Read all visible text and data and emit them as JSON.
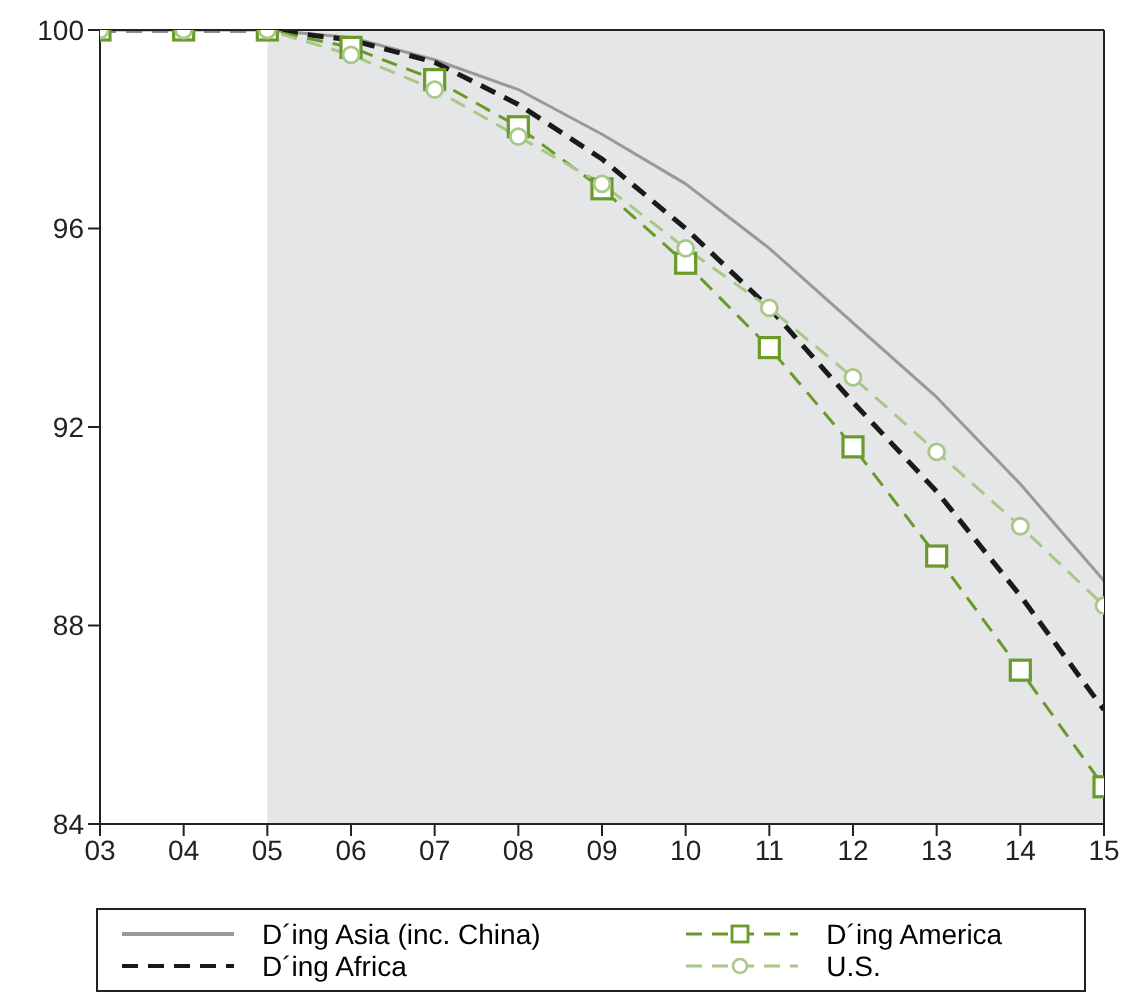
{
  "chart_data": {
    "type": "line",
    "categories": [
      "03",
      "04",
      "05",
      "06",
      "07",
      "08",
      "09",
      "10",
      "11",
      "12",
      "13",
      "14",
      "15"
    ],
    "ylim": [
      84,
      100
    ],
    "yticks": [
      84,
      88,
      92,
      96,
      100
    ],
    "grid": false,
    "legend": "bottom",
    "bands": [
      {
        "axis": "x",
        "from": "05",
        "to": "15",
        "color": "#e5e6e8"
      }
    ],
    "series": [
      {
        "name": "D´ing Asia (inc. China)",
        "color": "#999999",
        "line_style": "solid",
        "marker": "none",
        "values": [
          100,
          100,
          100,
          99.85,
          99.4,
          98.8,
          97.9,
          96.9,
          95.6,
          94.1,
          92.6,
          90.85,
          88.9
        ]
      },
      {
        "name": "D´ing Africa",
        "color": "#1a1a1a",
        "line_style": "dashed",
        "marker": "none",
        "values": [
          100,
          100,
          100,
          99.8,
          99.35,
          98.5,
          97.4,
          96.0,
          94.4,
          92.5,
          90.7,
          88.6,
          86.3
        ]
      },
      {
        "name": "D´ing America",
        "color": "#6a9a2a",
        "line_style": "dashed",
        "marker": "square",
        "values": [
          100,
          100,
          100,
          99.65,
          99.0,
          98.05,
          96.8,
          95.3,
          93.6,
          91.6,
          89.4,
          87.1,
          84.75
        ]
      },
      {
        "name": "U.S.",
        "color": "#a8c888",
        "line_style": "dashed",
        "marker": "circle",
        "values": [
          100,
          100,
          100,
          99.5,
          98.8,
          97.85,
          96.9,
          95.6,
          94.4,
          93.0,
          91.5,
          90.0,
          88.4
        ]
      }
    ]
  }
}
